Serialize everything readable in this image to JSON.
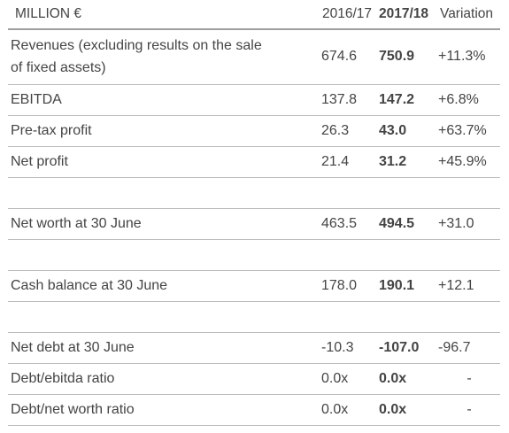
{
  "header": {
    "unit": "MILLION €",
    "col_prev": "2016/17",
    "col_curr": "2017/18",
    "col_var": "Variation"
  },
  "rows": [
    {
      "label_line1": "Revenues (excluding results on the sale",
      "label_line2": "of fixed assets)",
      "prev": "674.6",
      "curr": "750.9",
      "var": "+11.3%"
    },
    {
      "label": "EBITDA",
      "prev": "137.8",
      "curr": "147.2",
      "var": "+6.8%"
    },
    {
      "label": "Pre-tax profit",
      "prev": "26.3",
      "curr": "43.0",
      "var": "+63.7%"
    },
    {
      "label": "Net profit",
      "prev": "21.4",
      "curr": "31.2",
      "var": "+45.9%"
    },
    {
      "label": "Net worth at 30 June",
      "prev": "463.5",
      "curr": "494.5",
      "var": "+31.0"
    },
    {
      "label": "Cash balance at 30 June",
      "prev": "178.0",
      "curr": "190.1",
      "var": "+12.1"
    },
    {
      "label": "Net debt at 30 June",
      "prev": "-10.3",
      "curr": "-107.0",
      "var": "-96.7"
    },
    {
      "label": "Debt/ebitda ratio",
      "prev": "0.0x",
      "curr": "0.0x",
      "var": "-"
    },
    {
      "label": "Debt/net worth ratio",
      "prev": "0.0x",
      "curr": "0.0x",
      "var": "-"
    }
  ]
}
